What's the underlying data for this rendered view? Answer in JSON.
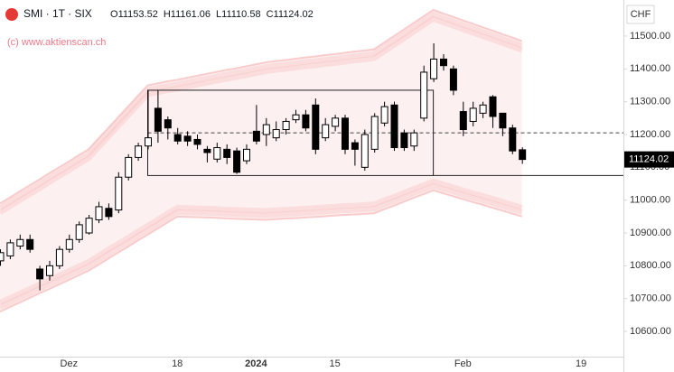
{
  "chart_data": {
    "type": "candlestick",
    "symbol": "SMI · 1T · SIX",
    "watermark": "(c) www.aktienscan.ch",
    "currency": "CHF",
    "legend_values": [
      {
        "label": "O",
        "value": "11153.52"
      },
      {
        "label": "H",
        "value": "11161.06"
      },
      {
        "label": "L",
        "value": "11110.58"
      },
      {
        "label": "C",
        "value": "11124.02"
      }
    ],
    "last_price": {
      "value": 11124.02,
      "label": "11124.02"
    },
    "up_color": "#ffffff",
    "down_color": "#000000",
    "wick_color": "#000000",
    "band_color": "#f7b9b9",
    "categories": [
      null,
      null,
      null,
      null,
      null,
      null,
      null,
      "Dez",
      null,
      null,
      null,
      null,
      null,
      null,
      null,
      null,
      null,
      null,
      "18",
      null,
      null,
      null,
      null,
      null,
      null,
      null,
      "2024",
      null,
      null,
      null,
      null,
      null,
      null,
      null,
      "15",
      null,
      null,
      null,
      null,
      null,
      null,
      null,
      null,
      null,
      null,
      null,
      null,
      "Feb",
      null,
      null,
      null,
      null,
      null,
      null,
      null,
      null,
      null,
      null,
      null,
      "19",
      null,
      null,
      null
    ],
    "open": [
      10815,
      10830,
      10860,
      10880,
      10790,
      10770,
      10800,
      10850,
      10880,
      10900,
      10940,
      10975,
      10970,
      11070,
      11130,
      11165,
      11280,
      11245,
      11200,
      11195,
      11185,
      11155,
      11125,
      11155,
      11150,
      11120,
      11210,
      11200,
      11190,
      11215,
      11245,
      11260,
      11290,
      11190,
      11225,
      11250,
      11175,
      11100,
      11155,
      11235,
      11290,
      11205,
      11165,
      11250,
      11370,
      11430,
      11400,
      11270,
      11240,
      11265,
      11315,
      11265,
      11220,
      11153.52,
      null,
      null,
      null,
      null,
      null,
      null,
      null,
      null,
      null
    ],
    "high": [
      10850,
      10880,
      10895,
      10895,
      10800,
      10815,
      10860,
      10895,
      10935,
      10955,
      10995,
      10990,
      11085,
      11140,
      11175,
      11335,
      11335,
      11255,
      11220,
      11210,
      11200,
      11165,
      11175,
      11170,
      11160,
      11170,
      11290,
      11250,
      11240,
      11250,
      11275,
      11275,
      11310,
      11250,
      11260,
      11260,
      11185,
      11215,
      11265,
      11300,
      11300,
      11215,
      11215,
      11410,
      11478,
      11445,
      11410,
      11300,
      11300,
      11300,
      11320,
      11265,
      11230,
      11161.06,
      null,
      null,
      null,
      null,
      null,
      null,
      null,
      null,
      null
    ],
    "low": [
      10800,
      10820,
      10850,
      10840,
      10725,
      10755,
      10790,
      10840,
      10870,
      10895,
      10930,
      10940,
      10960,
      11060,
      11120,
      11155,
      11175,
      11185,
      11170,
      11165,
      11155,
      11115,
      11115,
      11110,
      11080,
      11110,
      11170,
      11165,
      11180,
      11200,
      11235,
      11210,
      11140,
      11180,
      11210,
      11140,
      11105,
      11090,
      11145,
      11225,
      11150,
      11150,
      11150,
      11240,
      11360,
      11395,
      11320,
      11195,
      11225,
      11250,
      11220,
      11195,
      11140,
      11110.58,
      null,
      null,
      null,
      null,
      null,
      null,
      null,
      null,
      null
    ],
    "close": [
      10840,
      10870,
      10880,
      10850,
      10760,
      10800,
      10850,
      10880,
      10925,
      10945,
      10980,
      10950,
      11070,
      11130,
      11165,
      11190,
      11210,
      11220,
      11180,
      11180,
      11170,
      11145,
      11160,
      11130,
      11085,
      11155,
      11180,
      11230,
      11215,
      11240,
      11260,
      11220,
      11155,
      11230,
      11250,
      11155,
      11155,
      11200,
      11255,
      11285,
      11160,
      11160,
      11205,
      11390,
      11430,
      11410,
      11335,
      11215,
      11280,
      11290,
      11255,
      11220,
      11150,
      11124.02,
      null,
      null,
      null,
      null,
      null,
      null,
      null,
      null,
      null
    ],
    "bands": {
      "upper": [
        10990,
        11008,
        11027,
        11045,
        11063,
        11082,
        11100,
        11118,
        11137,
        11155,
        11188,
        11220,
        11253,
        11285,
        11318,
        11350,
        11356,
        11362,
        11367,
        11373,
        11379,
        11385,
        11391,
        11397,
        11402,
        11408,
        11414,
        11420,
        11424,
        11427,
        11431,
        11435,
        11438,
        11442,
        11445,
        11449,
        11453,
        11456,
        11460,
        11480,
        11500,
        11520,
        11540,
        11560,
        11580,
        11569,
        11559,
        11548,
        11538,
        11527,
        11517,
        11506,
        11496,
        11485,
        null,
        null,
        null,
        null,
        null,
        null,
        null,
        null,
        null
      ],
      "lower": [
        10660,
        10674,
        10688,
        10702,
        10716,
        10729,
        10743,
        10757,
        10771,
        10785,
        10803,
        10822,
        10840,
        10858,
        10877,
        10895,
        10913,
        10932,
        10950,
        10949,
        10948,
        10947,
        10946,
        10944,
        10943,
        10942,
        10941,
        10940,
        10942,
        10944,
        10945,
        10947,
        10949,
        10951,
        10953,
        10955,
        10956,
        10958,
        10960,
        10972,
        10983,
        10995,
        11007,
        11018,
        11030,
        11021,
        11012,
        11003,
        10994,
        10986,
        10977,
        10968,
        10959,
        10950,
        null,
        null,
        null,
        null,
        null,
        null,
        null,
        null,
        null
      ]
    },
    "drawings": {
      "box_top": 11335,
      "box_bottom": 11075,
      "dashed_level": 11205
    },
    "ylim": [
      10523,
      11610
    ],
    "yticks": [
      {
        "value": 10600,
        "label": "10600.00"
      },
      {
        "value": 10700,
        "label": "10700.00"
      },
      {
        "value": 10800,
        "label": "10800.00"
      },
      {
        "value": 10900,
        "label": "10900.00"
      },
      {
        "value": 11000,
        "label": "11000.00"
      },
      {
        "value": 11100,
        "label": "11100.00"
      },
      {
        "value": 11200,
        "label": "11200.00"
      },
      {
        "value": 11300,
        "label": "11300.00"
      },
      {
        "value": 11400,
        "label": "11400.00"
      },
      {
        "value": 11500,
        "label": "11500.00"
      }
    ]
  }
}
